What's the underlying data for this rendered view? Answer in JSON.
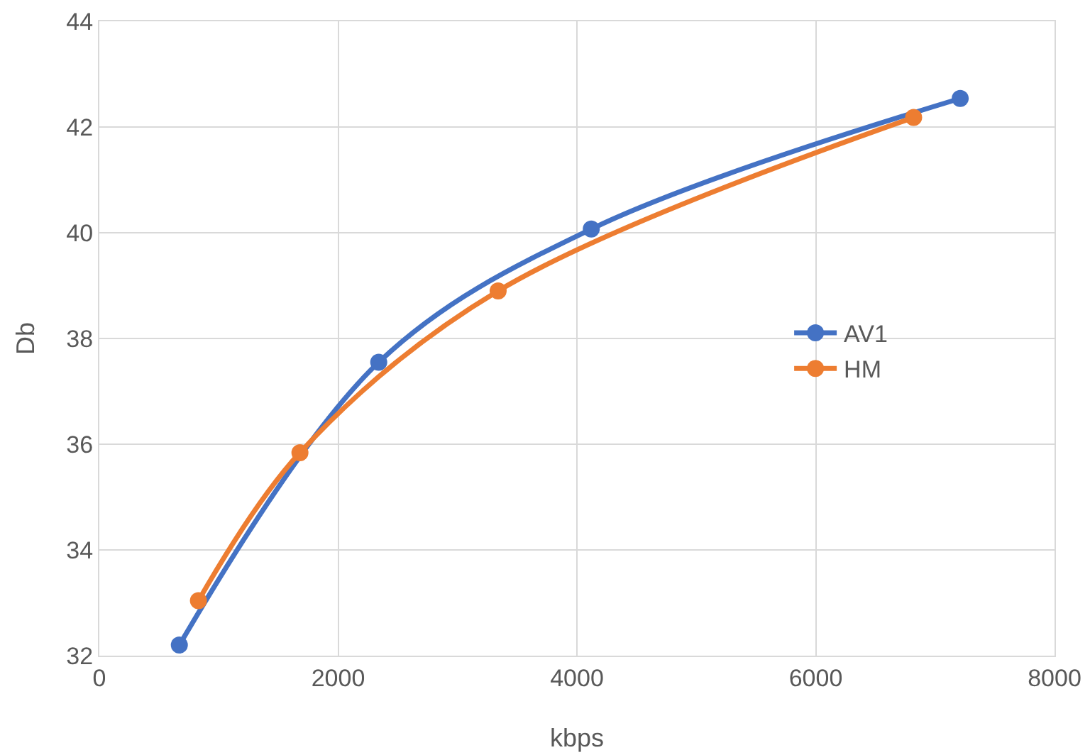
{
  "chart_data": {
    "type": "line",
    "xlabel": "kbps",
    "ylabel": "Db",
    "series": [
      {
        "name": "AV1",
        "color": "#4472c4",
        "x": [
          670,
          2340,
          4120,
          7210
        ],
        "values": [
          32.2,
          37.55,
          40.07,
          42.54
        ]
      },
      {
        "name": "HM",
        "color": "#ed7d31",
        "x": [
          830,
          1680,
          3340,
          6820
        ],
        "values": [
          33.04,
          35.84,
          38.9,
          42.18
        ]
      }
    ],
    "xlim": [
      0,
      8000
    ],
    "xticks": [
      0,
      2000,
      4000,
      6000,
      8000
    ],
    "ylim": [
      32,
      44
    ],
    "yticks": [
      32,
      34,
      36,
      38,
      40,
      42,
      44
    ],
    "grid": true,
    "legend": "right",
    "marker": "circle",
    "line_style": "solid"
  }
}
